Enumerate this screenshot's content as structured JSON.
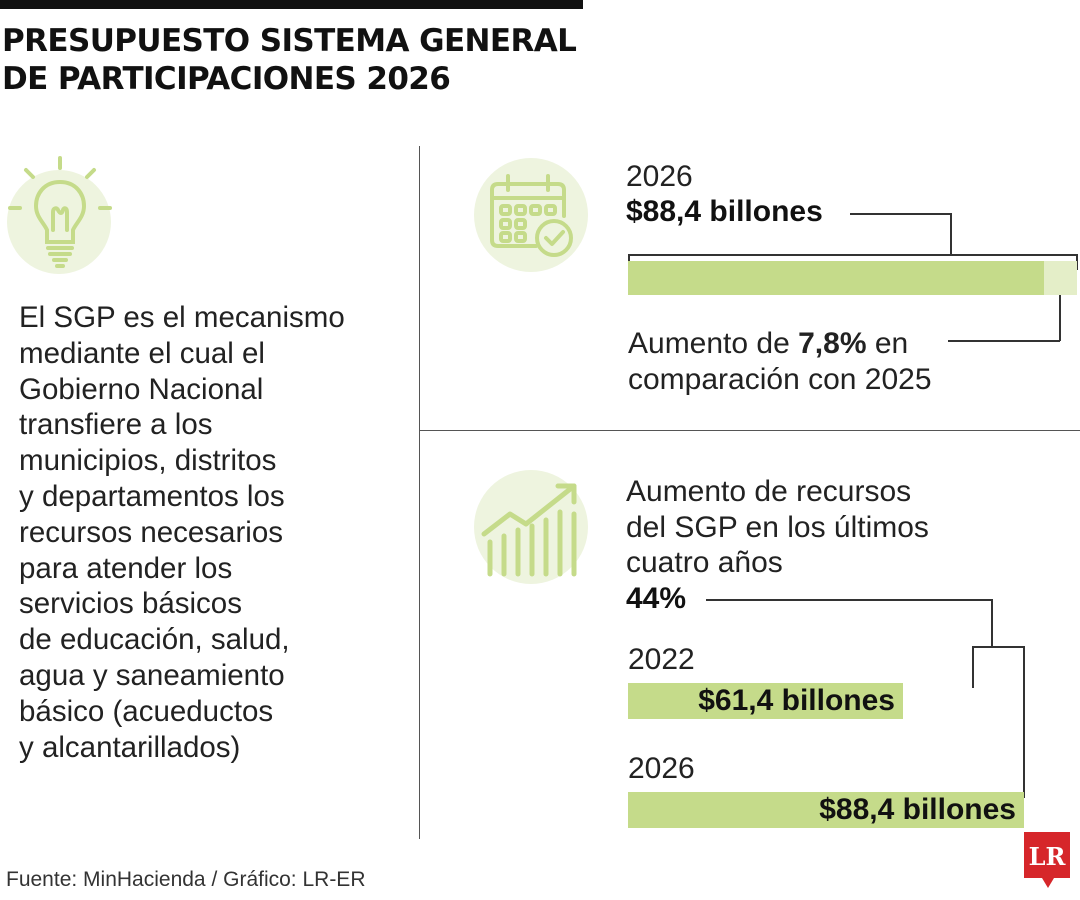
{
  "title": {
    "line1": "PRESUPUESTO SISTEMA GENERAL",
    "line2": "DE PARTICIPACIONES 2026"
  },
  "description": {
    "lines": [
      "El SGP es el mecanismo",
      "mediante el cual el",
      "Gobierno Nacional",
      "transfiere a los",
      "municipios, distritos",
      "y departamentos los",
      "recursos necesarios",
      "para atender los",
      "servicios básicos",
      "de educación, salud,",
      "agua y saneamiento",
      "básico (acueductos",
      "y alcantarillados)"
    ]
  },
  "icons": {
    "left": "lightbulb-icon",
    "top_right": "calendar-check-icon",
    "bottom_right": "growth-chart-icon"
  },
  "colors": {
    "bar": "#c5db8a",
    "bar_increase": "#e4eec8",
    "icon_bg": "#eef4df",
    "icon_stroke": "#c5db8a",
    "brand_red": "#d6262a"
  },
  "panel_2026": {
    "year": "2026",
    "amount": "$88,4 billones",
    "increase_prefix": "Aumento de ",
    "increase_value": "7,8%",
    "increase_suffix": " en",
    "increase_line2": "comparación con 2025"
  },
  "panel_growth": {
    "line1": "Aumento de recursos",
    "line2": "del SGP en los últimos",
    "line3": "cuatro años",
    "percent": "44%"
  },
  "chart_data": [
    {
      "type": "bar",
      "categories": [
        "2025",
        "2026"
      ],
      "values": [
        82.0,
        88.4
      ],
      "unit": "billones",
      "annotation": "Aumento de 7,8% en comparación con 2025"
    },
    {
      "type": "bar",
      "categories": [
        "2022",
        "2026"
      ],
      "values": [
        61.4,
        88.4
      ],
      "labels": [
        "$61,4 billones",
        "$88,4 billones"
      ],
      "unit": "billones",
      "annotation": "44%"
    }
  ],
  "footer": {
    "source": "Fuente: MinHacienda / Gráfico: LR-ER",
    "logo_text": "LR"
  }
}
